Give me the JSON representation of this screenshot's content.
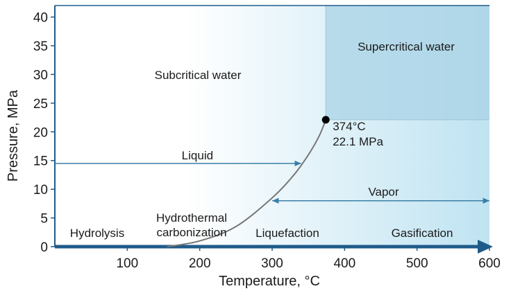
{
  "chart_data": {
    "type": "line",
    "title": "",
    "xlabel": "Temperature, °C",
    "ylabel": "Pressure, MPa",
    "xlim": [
      0,
      600
    ],
    "ylim": [
      0,
      42
    ],
    "x_ticks": [
      100,
      200,
      300,
      400,
      500,
      600
    ],
    "y_ticks": [
      0,
      5,
      10,
      15,
      20,
      25,
      30,
      35,
      40
    ],
    "grid": false,
    "series": [
      {
        "x": [
          155,
          200,
          250,
          300,
          330,
          350,
          365,
          374
        ],
        "y": [
          0,
          1.0,
          3.5,
          8.5,
          12.5,
          16.0,
          19.3,
          22.1
        ]
      }
    ],
    "critical_point": {
      "x": 374,
      "y": 22.1,
      "label_temp": "374°C",
      "label_pressure": "22.1 MPa"
    },
    "regions": {
      "subcritical": "Subcritical water",
      "supercritical": "Supercritical water",
      "supercritical_from": {
        "x": 374,
        "y": 22.1
      }
    },
    "arrows": [
      {
        "label": "Liquid",
        "x_start": 0,
        "x_end": 340,
        "y": 14.5
      },
      {
        "label": "Vapor",
        "x_start": 300,
        "x_end": 600,
        "y": 8
      }
    ],
    "processes": [
      "Hydrolysis",
      "Hydrothermal",
      "carbonization",
      "Liquefaction",
      "Gasification"
    ],
    "colors": {
      "gradient_start": "#ffffff",
      "gradient_end": "#bfe3f2",
      "supercritical_fill": "#a9d3e6",
      "axis": "#1f5b8a",
      "lines": "#3a7ea6",
      "curve": "#777777",
      "point": "#000000"
    }
  }
}
